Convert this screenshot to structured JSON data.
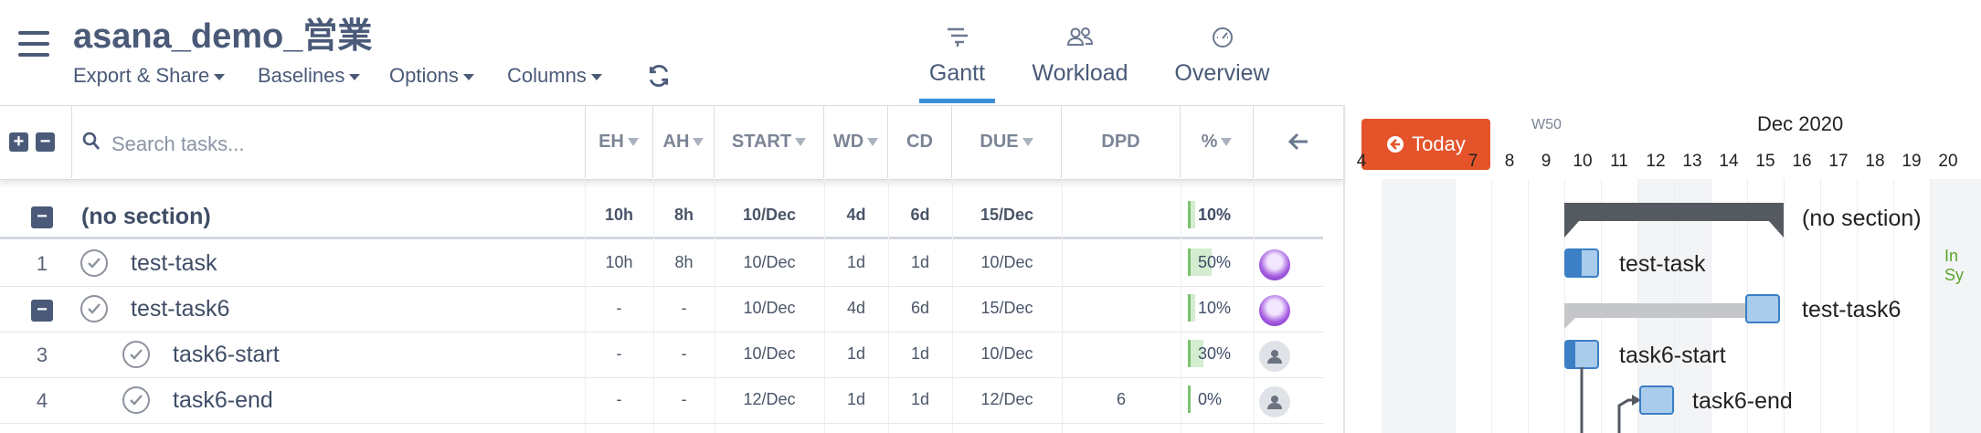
{
  "app": {
    "title": "asana_demo_営業"
  },
  "toolbar": {
    "menus": [
      "Export & Share",
      "Baselines",
      "Options",
      "Columns"
    ]
  },
  "tabs": [
    {
      "label": "Gantt",
      "active": true
    },
    {
      "label": "Workload",
      "active": false
    },
    {
      "label": "Overview",
      "active": false
    }
  ],
  "search": {
    "placeholder": "Search tasks..."
  },
  "columns": [
    "EH",
    "AH",
    "START",
    "WD",
    "CD",
    "DUE",
    "DPD",
    "%"
  ],
  "section": {
    "name": "(no section)",
    "eh": "10h",
    "ah": "8h",
    "start": "10/Dec",
    "wd": "4d",
    "cd": "6d",
    "due": "15/Dec",
    "dpd": "",
    "pct": "10%",
    "pct_value": 0.1
  },
  "rows": [
    {
      "num": "1",
      "name": "test-task",
      "eh": "10h",
      "ah": "8h",
      "start": "10/Dec",
      "wd": "1d",
      "cd": "1d",
      "due": "10/Dec",
      "dpd": "",
      "pct": "50%",
      "pct_value": 0.5
    },
    {
      "num": "",
      "name": "test-task6",
      "eh": "-",
      "ah": "-",
      "start": "10/Dec",
      "wd": "4d",
      "cd": "6d",
      "due": "15/Dec",
      "dpd": "",
      "pct": "10%",
      "pct_value": 0.1
    },
    {
      "num": "3",
      "name": "task6-start",
      "eh": "-",
      "ah": "-",
      "start": "10/Dec",
      "wd": "1d",
      "cd": "1d",
      "due": "10/Dec",
      "dpd": "",
      "pct": "30%",
      "pct_value": 0.3
    },
    {
      "num": "4",
      "name": "task6-end",
      "eh": "-",
      "ah": "-",
      "start": "12/Dec",
      "wd": "1d",
      "cd": "1d",
      "due": "12/Dec",
      "dpd": "6",
      "pct": "0%",
      "pct_value": 0
    }
  ],
  "gantt": {
    "today_label": "Today",
    "week_label": "W50",
    "month_label": "Dec 2020",
    "days": [
      "4",
      "7",
      "8",
      "9",
      "10",
      "11",
      "12",
      "13",
      "14",
      "15",
      "16",
      "17",
      "18",
      "19",
      "20"
    ],
    "labels": [
      "(no section)",
      "test-task",
      "test-task6",
      "task6-start",
      "task6-end"
    ],
    "in_sync": "In Sy"
  },
  "colors": {
    "accent": "#3b8fd9",
    "today": "#e4532a",
    "progress": "#7cc36e",
    "bar": "#a9cbec"
  }
}
